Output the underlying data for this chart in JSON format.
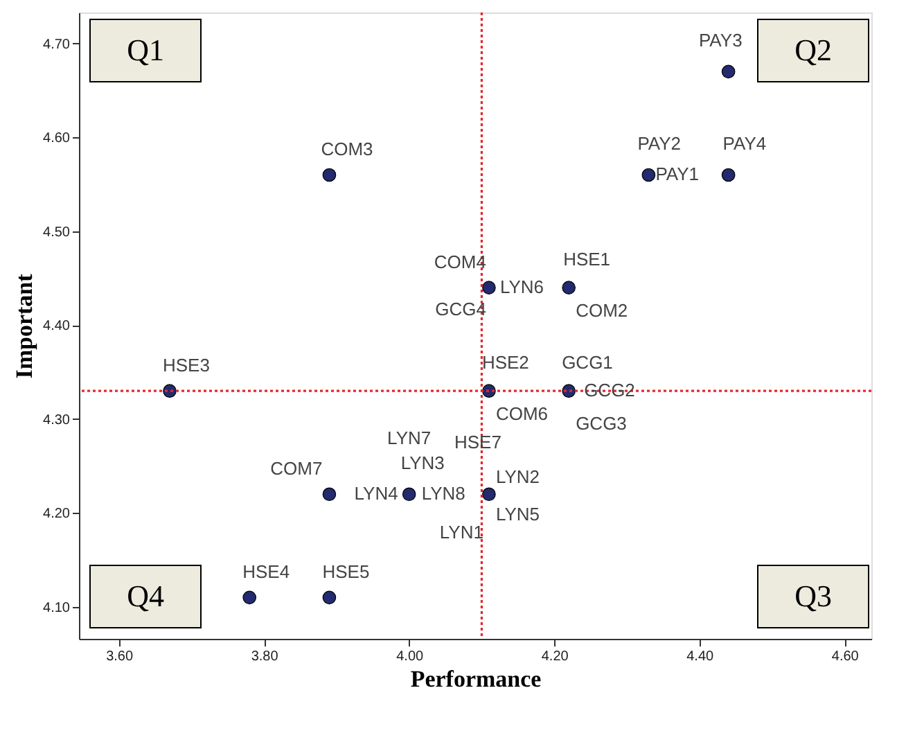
{
  "chart_data": {
    "type": "scatter",
    "xlabel": "Performance",
    "ylabel": "Important",
    "x": [
      4.44,
      4.33,
      4.44,
      3.89,
      4.11,
      4.22,
      3.67,
      4.11,
      4.22,
      3.89,
      4.0,
      4.11,
      3.78,
      3.89
    ],
    "series": [
      {
        "color": "#232a6e",
        "values": [
          4.67,
          4.56,
          4.56,
          4.56,
          4.44,
          4.44,
          4.33,
          4.33,
          4.33,
          4.22,
          4.22,
          4.22,
          4.11,
          4.11
        ]
      }
    ],
    "marker": "circle",
    "grid": false,
    "legend": false,
    "xlim": [
      3.545,
      4.637
    ],
    "ylim": [
      4.066,
      4.733
    ],
    "xticks": [
      {
        "value": 3.6,
        "label": "3.60"
      },
      {
        "value": 3.8,
        "label": "3.80"
      },
      {
        "value": 4.0,
        "label": "4.00"
      },
      {
        "value": 4.2,
        "label": "4.20"
      },
      {
        "value": 4.4,
        "label": "4.40"
      },
      {
        "value": 4.6,
        "label": "4.60"
      }
    ],
    "yticks": [
      {
        "value": 4.1,
        "label": "4.10"
      },
      {
        "value": 4.2,
        "label": "4.20"
      },
      {
        "value": 4.3,
        "label": "4.30"
      },
      {
        "value": 4.4,
        "label": "4.40"
      },
      {
        "value": 4.5,
        "label": "4.50"
      },
      {
        "value": 4.6,
        "label": "4.60"
      },
      {
        "value": 4.7,
        "label": "4.70"
      }
    ],
    "ref_lines": [
      {
        "axis": "x",
        "value": 4.1,
        "color": "#e8262a",
        "line_style": "dotted"
      },
      {
        "axis": "y",
        "value": 4.33,
        "color": "#e8262a",
        "line_style": "dotted"
      }
    ],
    "annotations": [
      "Q1",
      "Q2",
      "Q3",
      "Q4",
      {
        "text": "PAY3",
        "x": 4.44,
        "y": 4.67
      },
      {
        "text": "PAY2",
        "x": 4.33,
        "y": 4.56
      },
      {
        "text": "PAY1",
        "x": 4.33,
        "y": 4.56
      },
      {
        "text": "PAY4",
        "x": 4.44,
        "y": 4.56
      },
      {
        "text": "COM3",
        "x": 3.89,
        "y": 4.56
      },
      {
        "text": "COM4",
        "x": 4.11,
        "y": 4.44
      },
      {
        "text": "LYN6",
        "x": 4.11,
        "y": 4.44
      },
      {
        "text": "GCG4",
        "x": 4.11,
        "y": 4.44
      },
      {
        "text": "HSE1",
        "x": 4.22,
        "y": 4.44
      },
      {
        "text": "COM2",
        "x": 4.22,
        "y": 4.44
      },
      {
        "text": "HSE3",
        "x": 3.67,
        "y": 4.33
      },
      {
        "text": "HSE2",
        "x": 4.11,
        "y": 4.33
      },
      {
        "text": "COM6",
        "x": 4.11,
        "y": 4.33
      },
      {
        "text": "GCG1",
        "x": 4.22,
        "y": 4.33
      },
      {
        "text": "GCG2",
        "x": 4.22,
        "y": 4.33
      },
      {
        "text": "GCG3",
        "x": 4.22,
        "y": 4.33
      },
      {
        "text": "COM7",
        "x": 3.89,
        "y": 4.22
      },
      {
        "text": "LYN7",
        "x": 4.0,
        "y": 4.22
      },
      {
        "text": "LYN3",
        "x": 4.0,
        "y": 4.22
      },
      {
        "text": "LYN4",
        "x": 4.0,
        "y": 4.22
      },
      {
        "text": "LYN8",
        "x": 4.0,
        "y": 4.22
      },
      {
        "text": "HSE7",
        "x": 4.11,
        "y": 4.22
      },
      {
        "text": "LYN2",
        "x": 4.11,
        "y": 4.22
      },
      {
        "text": "LYN5",
        "x": 4.11,
        "y": 4.22
      },
      {
        "text": "LYN1",
        "x": 4.11,
        "y": 4.22
      },
      {
        "text": "HSE4",
        "x": 3.78,
        "y": 4.11
      },
      {
        "text": "HSE5",
        "x": 3.89,
        "y": 4.11
      }
    ]
  }
}
